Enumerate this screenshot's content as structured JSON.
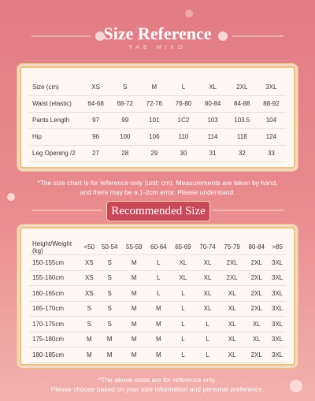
{
  "header": {
    "title": "Size Reference",
    "subtitle": "YAE MIKO"
  },
  "size_table": {
    "header": [
      "Size (cm)",
      "XS",
      "S",
      "M",
      "L",
      "XL",
      "2XL",
      "3XL"
    ],
    "rows": [
      [
        "Waist (elastic)",
        "64-68",
        "68-72",
        "72-76",
        "76-80",
        "80-84",
        "84-88",
        "88-92"
      ],
      [
        "Pants Length",
        "97",
        "99",
        "101",
        "1C2",
        "103",
        "103.5",
        "104"
      ],
      [
        "Hip",
        "96",
        "100",
        "106",
        "110",
        "114",
        "118",
        "124"
      ],
      [
        "Leg Opening /2",
        "27",
        "28",
        "29",
        "30",
        "31",
        "32",
        "33"
      ]
    ]
  },
  "size_note": [
    "*The size chart is for reference only (unit: cm). Measurements are taken by hand,",
    "and there may be a 1-2cm error. Please understand."
  ],
  "recommended": {
    "title": "Recommended Size",
    "header": [
      "Height/Weight (kg)",
      "<50",
      "50-54",
      "55-59",
      "60-64",
      "65-69",
      "70-74",
      "75-79",
      "80-84",
      ">85"
    ],
    "rows": [
      [
        "150-155cm",
        "XS",
        "S",
        "M",
        "L",
        "XL",
        "XL",
        "2XL",
        "2XL",
        "3XL"
      ],
      [
        "155-160cm",
        "XS",
        "S",
        "M",
        "L",
        "XL",
        "XL",
        "2XL",
        "2XL",
        "3XL"
      ],
      [
        "160-165cm",
        "XS",
        "S",
        "M",
        "L",
        "L",
        "XL",
        "XL",
        "2XL",
        "3XL"
      ],
      [
        "165-170cm",
        "S",
        "S",
        "M",
        "M",
        "L",
        "XL",
        "XL",
        "2XL",
        "3XL"
      ],
      [
        "170-175cm",
        "S",
        "S",
        "M",
        "M",
        "L",
        "L",
        "XL",
        "XL",
        "3XL"
      ],
      [
        "175-180cm",
        "M",
        "M",
        "M",
        "M",
        "L",
        "L",
        "XL",
        "XL",
        "3XL"
      ],
      [
        "180-185cm",
        "M",
        "M",
        "M",
        "M",
        "L",
        "L",
        "XL",
        "2XL",
        "3XL"
      ]
    ]
  },
  "recommended_note": [
    "*The above sizes are for reference only.",
    "Please choose based on your size information and personal preference."
  ]
}
